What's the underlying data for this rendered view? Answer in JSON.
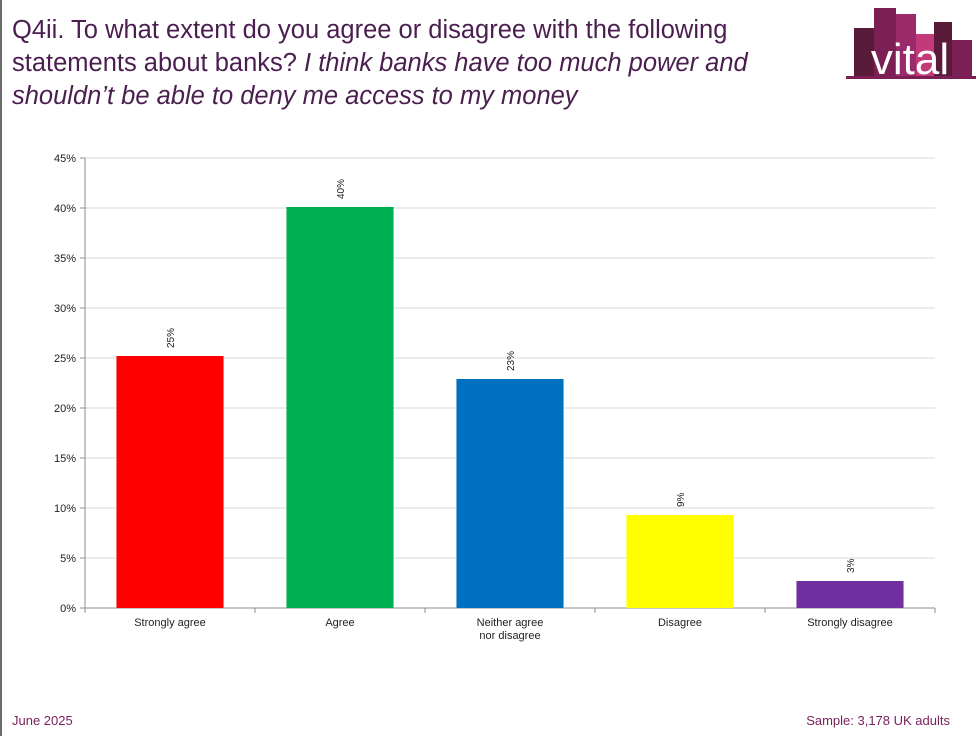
{
  "header": {
    "title_main": "Q4ii. To what extent do you agree or disagree with the following statements about banks?",
    "title_statement": "I think banks have too much power and shouldn’t be able to deny me access to my money"
  },
  "logo": {
    "text": "vital",
    "colors": [
      "#5a1a3a",
      "#7b1f55",
      "#9a2a6a",
      "#c23a7a"
    ]
  },
  "chart_data": {
    "type": "bar",
    "categories": [
      "Strongly agree",
      "Agree",
      "Neither agree nor disagree",
      "Disagree",
      "Strongly disagree"
    ],
    "category_lines": [
      [
        "Strongly agree"
      ],
      [
        "Agree"
      ],
      [
        "Neither agree",
        "nor disagree"
      ],
      [
        "Disagree"
      ],
      [
        "Strongly disagree"
      ]
    ],
    "values": [
      25.2,
      40.1,
      22.9,
      9.3,
      2.7
    ],
    "data_labels": [
      "25%",
      "40%",
      "23%",
      "9%",
      "3%"
    ],
    "colors": [
      "#ff0000",
      "#00b050",
      "#0070c0",
      "#ffff00",
      "#7030a0"
    ],
    "ylim": [
      0,
      45
    ],
    "yticks": [
      0,
      5,
      10,
      15,
      20,
      25,
      30,
      35,
      40,
      45
    ],
    "ytick_labels": [
      "0%",
      "5%",
      "10%",
      "15%",
      "20%",
      "25%",
      "30%",
      "35%",
      "40%",
      "45%"
    ],
    "grid": true,
    "title": "",
    "xlabel": "",
    "ylabel": ""
  },
  "footer": {
    "date": "June 2025",
    "sample": "Sample: 3,178 UK adults"
  }
}
